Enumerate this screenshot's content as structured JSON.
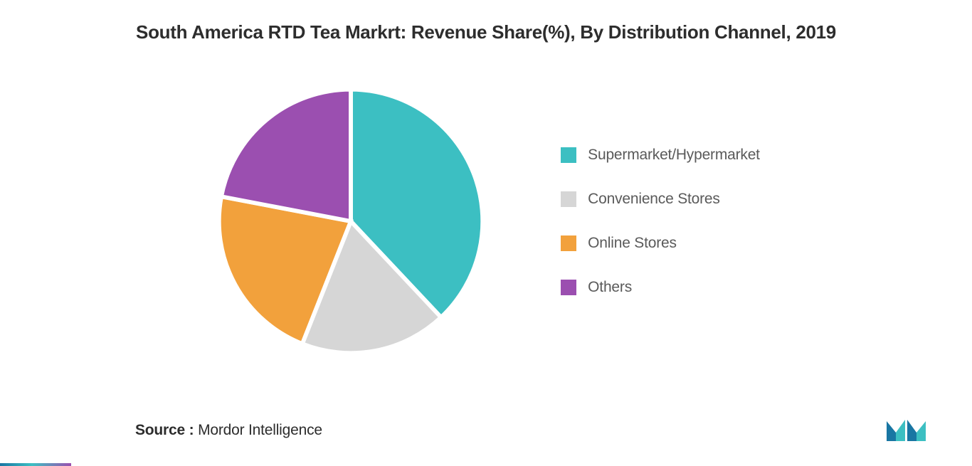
{
  "chart": {
    "type": "pie",
    "title": "South America RTD Tea Markrt: Revenue Share(%), By Distribution Channel, 2019",
    "title_fontsize": 26,
    "title_color": "#2d2d2d",
    "background_color": "#ffffff",
    "pie_diameter": 390,
    "slices": [
      {
        "label": "Supermarket/Hypermarket",
        "value": 38,
        "color": "#3cbfc2"
      },
      {
        "label": "Convenience Stores",
        "value": 18,
        "color": "#d6d6d6"
      },
      {
        "label": "Online Stores",
        "value": 22,
        "color": "#f2a13c"
      },
      {
        "label": "Others",
        "value": 22,
        "color": "#9b4fb0"
      }
    ],
    "slice_gap_color": "#ffffff",
    "slice_gap_width": 3,
    "start_angle_deg": -90,
    "legend": {
      "position": "right",
      "swatch_size": 22,
      "label_fontsize": 21,
      "label_color": "#5a5a5a",
      "item_gap": 38,
      "items": [
        {
          "label": "Supermarket/Hypermarket",
          "color": "#3cbfc2"
        },
        {
          "label": "Convenience Stores",
          "color": "#d6d6d6"
        },
        {
          "label": "Online Stores",
          "color": "#f2a13c"
        },
        {
          "label": "Others",
          "color": "#9b4fb0"
        }
      ]
    }
  },
  "source": {
    "label": "Source : ",
    "value": "Mordor Intelligence",
    "fontsize": 21,
    "color": "#2d2d2d"
  },
  "logo": {
    "name": "mordor-intelligence-logo",
    "primary_color": "#1976a3",
    "secondary_color": "#3cbfc2"
  },
  "bottom_border": {
    "height": 4,
    "gradient_colors": [
      "#1976a3",
      "#3cbfc2",
      "#9b4fb0"
    ]
  }
}
